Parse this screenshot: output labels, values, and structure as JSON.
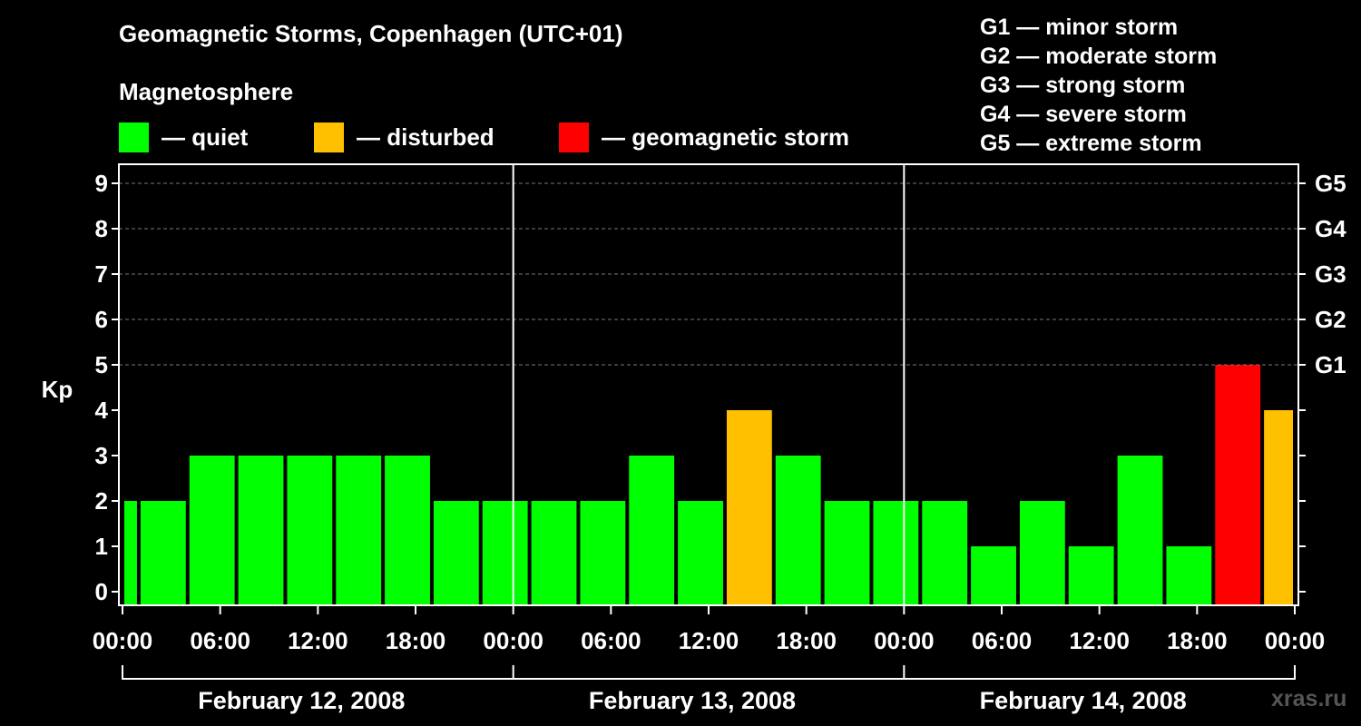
{
  "chart_data": {
    "type": "bar",
    "title": "Geomagnetic Storms, Copenhagen (UTC+01)",
    "subtitle": "Magnetosphere",
    "ylabel": "Kp",
    "ylim": [
      0,
      9
    ],
    "yticks": [
      "0",
      "1",
      "2",
      "3",
      "4",
      "5",
      "6",
      "7",
      "8",
      "9"
    ],
    "right_ticks": [
      {
        "kp": 5,
        "label": "G1"
      },
      {
        "kp": 6,
        "label": "G2"
      },
      {
        "kp": 7,
        "label": "G3"
      },
      {
        "kp": 8,
        "label": "G4"
      },
      {
        "kp": 9,
        "label": "G5"
      }
    ],
    "grid_values": [
      5,
      6,
      7,
      8,
      9
    ],
    "x_hours_total": 72,
    "x_ticks": [
      {
        "hour": 0,
        "label": "00:00"
      },
      {
        "hour": 6,
        "label": "06:00"
      },
      {
        "hour": 12,
        "label": "12:00"
      },
      {
        "hour": 18,
        "label": "18:00"
      },
      {
        "hour": 24,
        "label": "00:00"
      },
      {
        "hour": 30,
        "label": "06:00"
      },
      {
        "hour": 36,
        "label": "12:00"
      },
      {
        "hour": 42,
        "label": "18:00"
      },
      {
        "hour": 48,
        "label": "00:00"
      },
      {
        "hour": 54,
        "label": "06:00"
      },
      {
        "hour": 60,
        "label": "12:00"
      },
      {
        "hour": 66,
        "label": "18:00"
      },
      {
        "hour": 72,
        "label": "00:00"
      }
    ],
    "day_separators": [
      24,
      48
    ],
    "days": [
      {
        "start": 0,
        "end": 24,
        "label": "February 12, 2008"
      },
      {
        "start": 24,
        "end": 48,
        "label": "February 13, 2008"
      },
      {
        "start": 48,
        "end": 72,
        "label": "February 14, 2008"
      }
    ],
    "bars": [
      {
        "start": 0,
        "end": 1,
        "kp": 2,
        "level": "quiet"
      },
      {
        "start": 1,
        "end": 4,
        "kp": 2,
        "level": "quiet"
      },
      {
        "start": 4,
        "end": 7,
        "kp": 3,
        "level": "quiet"
      },
      {
        "start": 7,
        "end": 10,
        "kp": 3,
        "level": "quiet"
      },
      {
        "start": 10,
        "end": 13,
        "kp": 3,
        "level": "quiet"
      },
      {
        "start": 13,
        "end": 16,
        "kp": 3,
        "level": "quiet"
      },
      {
        "start": 16,
        "end": 19,
        "kp": 3,
        "level": "quiet"
      },
      {
        "start": 19,
        "end": 22,
        "kp": 2,
        "level": "quiet"
      },
      {
        "start": 22,
        "end": 25,
        "kp": 2,
        "level": "quiet"
      },
      {
        "start": 25,
        "end": 28,
        "kp": 2,
        "level": "quiet"
      },
      {
        "start": 28,
        "end": 31,
        "kp": 2,
        "level": "quiet"
      },
      {
        "start": 31,
        "end": 34,
        "kp": 3,
        "level": "quiet"
      },
      {
        "start": 34,
        "end": 37,
        "kp": 2,
        "level": "quiet"
      },
      {
        "start": 37,
        "end": 40,
        "kp": 4,
        "level": "disturbed"
      },
      {
        "start": 40,
        "end": 43,
        "kp": 3,
        "level": "quiet"
      },
      {
        "start": 43,
        "end": 46,
        "kp": 2,
        "level": "quiet"
      },
      {
        "start": 46,
        "end": 49,
        "kp": 2,
        "level": "quiet"
      },
      {
        "start": 49,
        "end": 52,
        "kp": 2,
        "level": "quiet"
      },
      {
        "start": 52,
        "end": 55,
        "kp": 1,
        "level": "quiet"
      },
      {
        "start": 55,
        "end": 58,
        "kp": 2,
        "level": "quiet"
      },
      {
        "start": 58,
        "end": 61,
        "kp": 1,
        "level": "quiet"
      },
      {
        "start": 61,
        "end": 64,
        "kp": 3,
        "level": "quiet"
      },
      {
        "start": 64,
        "end": 67,
        "kp": 1,
        "level": "quiet"
      },
      {
        "start": 67,
        "end": 70,
        "kp": 5,
        "level": "storm"
      },
      {
        "start": 70,
        "end": 72,
        "kp": 4,
        "level": "disturbed"
      }
    ]
  },
  "legend": [
    {
      "key": "quiet",
      "label": "— quiet",
      "color": "#00ff00"
    },
    {
      "key": "disturbed",
      "label": "— disturbed",
      "color": "#ffc000"
    },
    {
      "key": "storm",
      "label": "— geomagnetic storm",
      "color": "#ff0000"
    }
  ],
  "storm_scale": [
    "G1 — minor storm",
    "G2 — moderate storm",
    "G3 — strong storm",
    "G4 — severe storm",
    "G5 — extreme storm"
  ],
  "watermark": "xras.ru"
}
